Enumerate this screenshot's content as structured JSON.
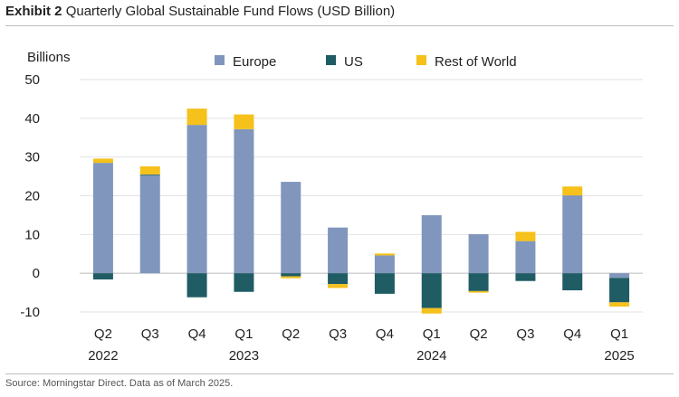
{
  "header": {
    "exhibit_label": "Exhibit 2",
    "title": "Quarterly Global Sustainable Fund Flows (USD Billion)"
  },
  "footer": {
    "source": "Source: Morningstar Direct. Data as of March 2025."
  },
  "chart_data": {
    "type": "bar",
    "stacked": true,
    "title": "Quarterly Global Sustainable Fund Flows (USD Billion)",
    "ylabel": "Billions",
    "xlabel": "",
    "ylim": [
      -10,
      50
    ],
    "yticks": [
      50,
      40,
      30,
      20,
      10,
      0,
      -10
    ],
    "grid": true,
    "legend_position": "top",
    "categories": [
      "Q2",
      "Q3",
      "Q4",
      "Q1",
      "Q2",
      "Q3",
      "Q4",
      "Q1",
      "Q2",
      "Q3",
      "Q4",
      "Q1"
    ],
    "year_labels": [
      "2022",
      "",
      "",
      "2023",
      "",
      "",
      "",
      "2024",
      "",
      "",
      "",
      "2025"
    ],
    "series": [
      {
        "name": "Europe",
        "color": "#8096bc",
        "values": [
          28.5,
          25.3,
          38.3,
          37.2,
          23.6,
          11.8,
          4.6,
          15.0,
          10.1,
          8.3,
          20.1,
          -1.2
        ]
      },
      {
        "name": "US",
        "color": "#1f5c63",
        "values": [
          -1.6,
          0.2,
          -6.2,
          -4.8,
          -0.8,
          -2.8,
          -5.3,
          -9.0,
          -4.6,
          -2.0,
          -4.4,
          -6.3
        ]
      },
      {
        "name": "Rest of World",
        "color": "#f5c11a",
        "values": [
          1.1,
          2.1,
          4.2,
          3.8,
          -0.5,
          -1.0,
          0.5,
          -1.4,
          -0.4,
          2.4,
          2.3,
          -1.1
        ]
      }
    ]
  }
}
